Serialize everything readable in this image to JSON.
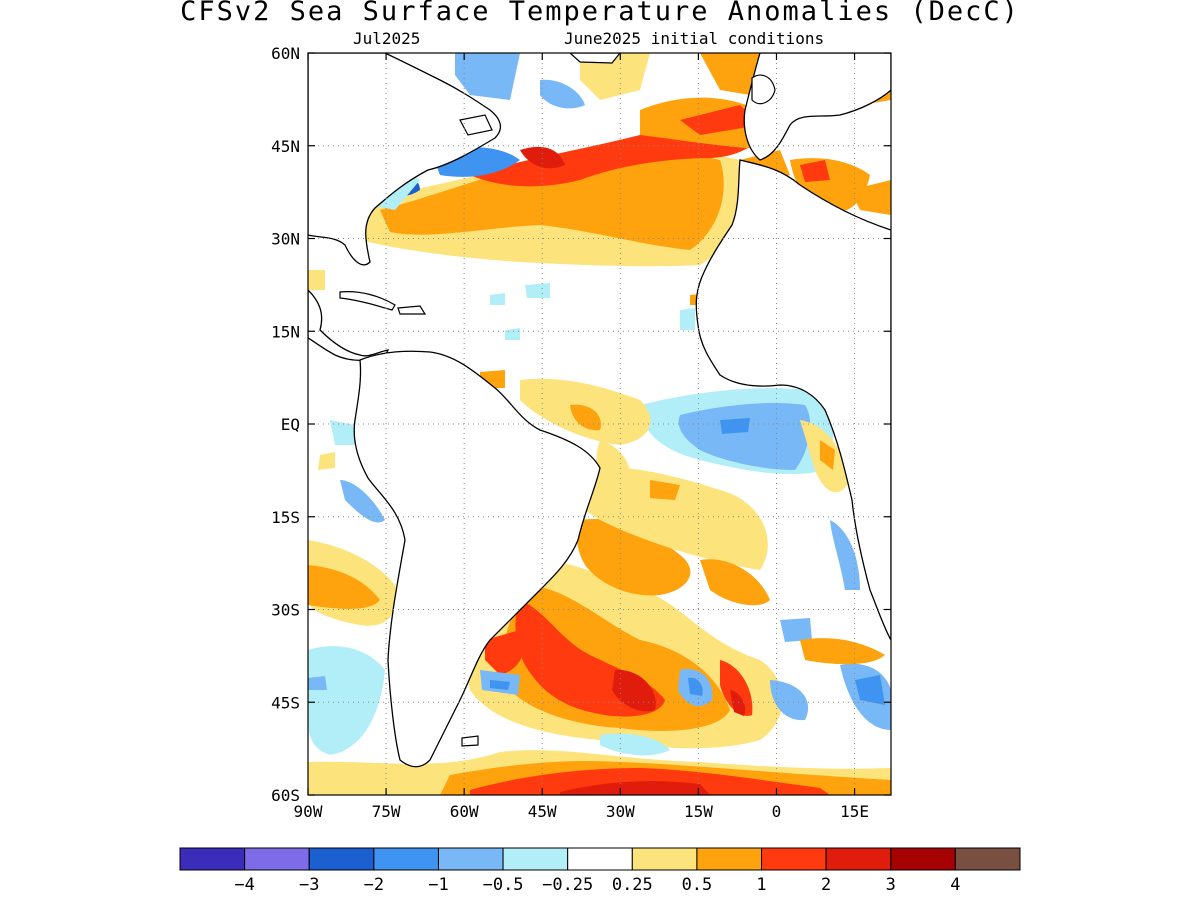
{
  "title": "CFSv2 Sea Surface Temperature Anomalies (DecC)",
  "subtitle_left": "Jul2025",
  "subtitle_right": "June2025 initial conditions",
  "map": {
    "lon_range": [
      -90,
      22
    ],
    "lat_range": [
      -60,
      60
    ],
    "grid": "dotted",
    "lat_ticks": [
      {
        "lat": 60,
        "label": "60N"
      },
      {
        "lat": 45,
        "label": "45N"
      },
      {
        "lat": 30,
        "label": "30N"
      },
      {
        "lat": 15,
        "label": "15N"
      },
      {
        "lat": 0,
        "label": "EQ"
      },
      {
        "lat": -15,
        "label": "15S"
      },
      {
        "lat": -30,
        "label": "30S"
      },
      {
        "lat": -45,
        "label": "45S"
      },
      {
        "lat": -60,
        "label": "60S"
      }
    ],
    "lon_ticks": [
      {
        "lon": -90,
        "label": "90W"
      },
      {
        "lon": -75,
        "label": "75W"
      },
      {
        "lon": -60,
        "label": "60W"
      },
      {
        "lon": -45,
        "label": "45W"
      },
      {
        "lon": -30,
        "label": "30W"
      },
      {
        "lon": -15,
        "label": "15W"
      },
      {
        "lon": 0,
        "label": "0"
      },
      {
        "lon": 15,
        "label": "15E"
      }
    ]
  },
  "colorbar": {
    "colors": [
      "#3b2dba",
      "#7e6be8",
      "#1c5fcf",
      "#3e94f0",
      "#78b8f6",
      "#b2eef8",
      "#ffffff",
      "#fde37c",
      "#fea20d",
      "#ff3a0f",
      "#e01c0c",
      "#a70203",
      "#794f41"
    ],
    "labels": [
      "−4",
      "−3",
      "−2",
      "−1",
      "−0.5",
      "−0.25",
      "0.25",
      "0.5",
      "1",
      "2",
      "3",
      "4"
    ]
  },
  "colors": {
    "land": "#ffffff",
    "coast": "#000000"
  }
}
